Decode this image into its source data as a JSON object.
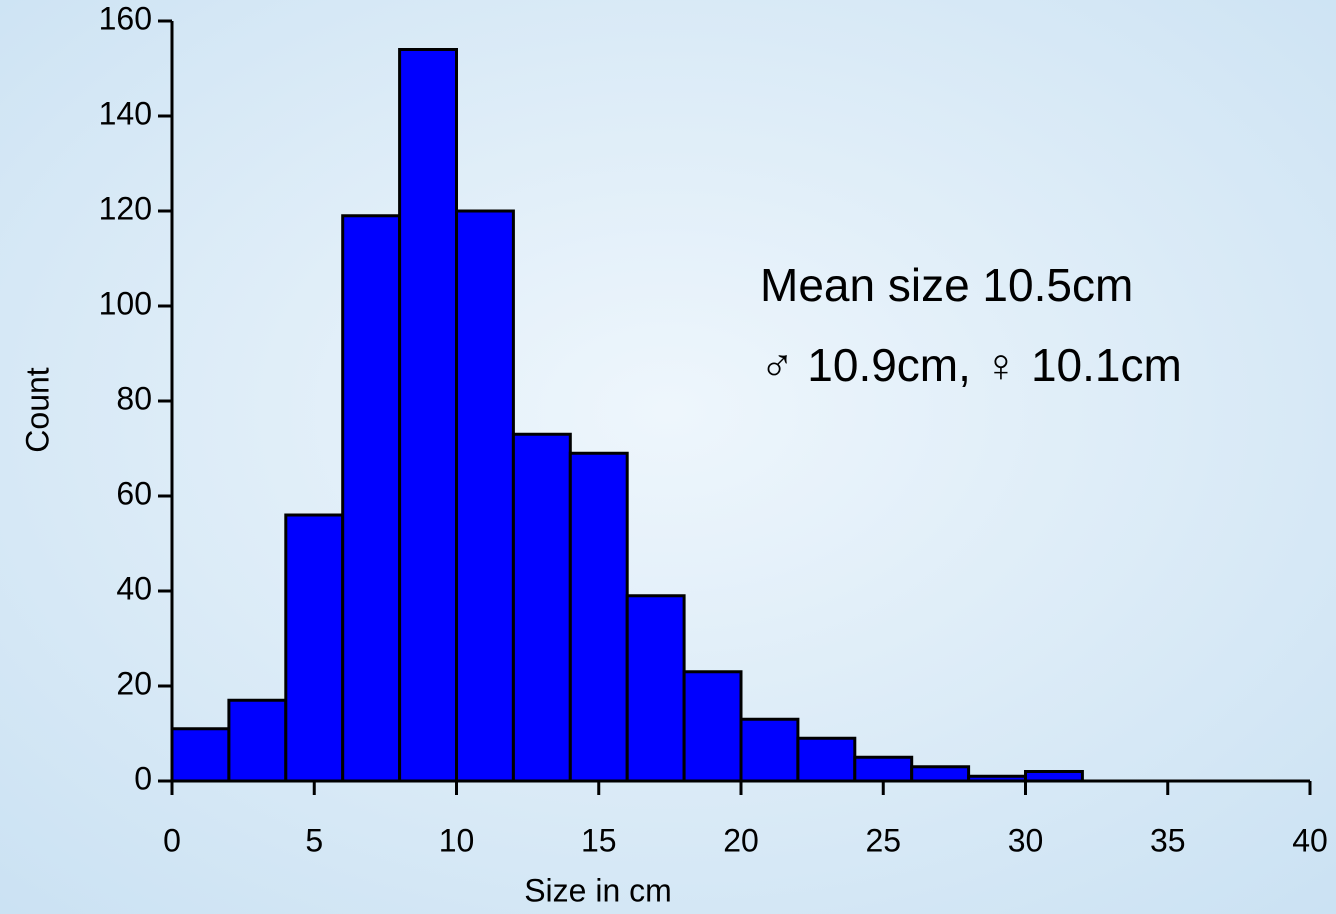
{
  "chart_data": {
    "type": "histogram",
    "xlabel": "Size in cm",
    "ylabel": "Count",
    "annotations": [
      "Mean size 10.5cm",
      "♂ 10.9cm, ♀ 10.1cm"
    ],
    "bins": [
      0,
      2,
      4,
      6,
      8,
      10,
      12,
      14,
      16,
      18,
      20,
      22,
      24,
      26,
      28,
      30,
      32
    ],
    "values": [
      11,
      17,
      56,
      119,
      154,
      120,
      73,
      69,
      39,
      23,
      13,
      9,
      5,
      3,
      1,
      2
    ],
    "color": "#0000ff",
    "xlim": [
      0,
      40
    ],
    "xticks": [
      0,
      5,
      10,
      15,
      20,
      25,
      30,
      35,
      40
    ],
    "ylim": [
      0,
      160
    ],
    "yticks": [
      0,
      20,
      40,
      60,
      80,
      100,
      120,
      140,
      160
    ]
  }
}
